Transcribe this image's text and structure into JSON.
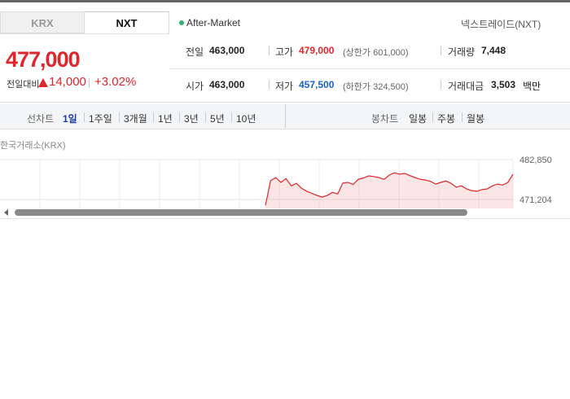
{
  "tabs": [
    "KRX",
    "NXT"
  ],
  "session": "After-Market",
  "market_name": "넥스트레이드(NXT)",
  "price": {
    "current": "477,000",
    "change_label": "전일대비",
    "change": "14,000",
    "change_pct": "+3.02%"
  },
  "stats": [
    [
      {
        "label": "전일",
        "value": "463,000"
      },
      {
        "label": "고가",
        "value": "479,000",
        "note": "(상한가 601,000)"
      },
      {
        "label": "거래량",
        "value": "7,448"
      }
    ],
    [
      {
        "label": "시가",
        "value": "463,000"
      },
      {
        "label": "저가",
        "value": "457,500",
        "note": "(하한가 324,500)"
      },
      {
        "label": "거래대금",
        "value": "3,503",
        "unit": "백만"
      }
    ]
  ],
  "line_chart": {
    "label": "선차트",
    "options": [
      "1일",
      "1주일",
      "3개월",
      "1년",
      "3년",
      "5년",
      "10년"
    ]
  },
  "candle_chart": {
    "label": "봉차트",
    "options": [
      "일봉",
      "주봉",
      "월봉"
    ]
  },
  "chart_data": {
    "type": "line",
    "source": "한국거래소(KRX)",
    "color": "#e0262b",
    "values": [
      469500,
      476700,
      477600,
      476200,
      477300,
      475200,
      475900,
      474500,
      473600,
      473000,
      472400,
      471900,
      472400,
      473300,
      472800,
      476000,
      476200,
      475600,
      477100,
      477500,
      478100,
      477900,
      477600,
      477100,
      478300,
      479000,
      478600,
      478800,
      478200,
      477600,
      477100,
      476900,
      476500,
      475700,
      476200,
      476600,
      475900,
      474800,
      475200,
      474300,
      473800,
      473600,
      474100,
      474300,
      475200,
      475700,
      475400,
      476200,
      478600
    ],
    "ylim": [
      469300,
      482850
    ],
    "yticks": [
      {
        "value": 482850,
        "label": "482,850"
      },
      {
        "value": 471204,
        "label": "471,204"
      }
    ]
  }
}
